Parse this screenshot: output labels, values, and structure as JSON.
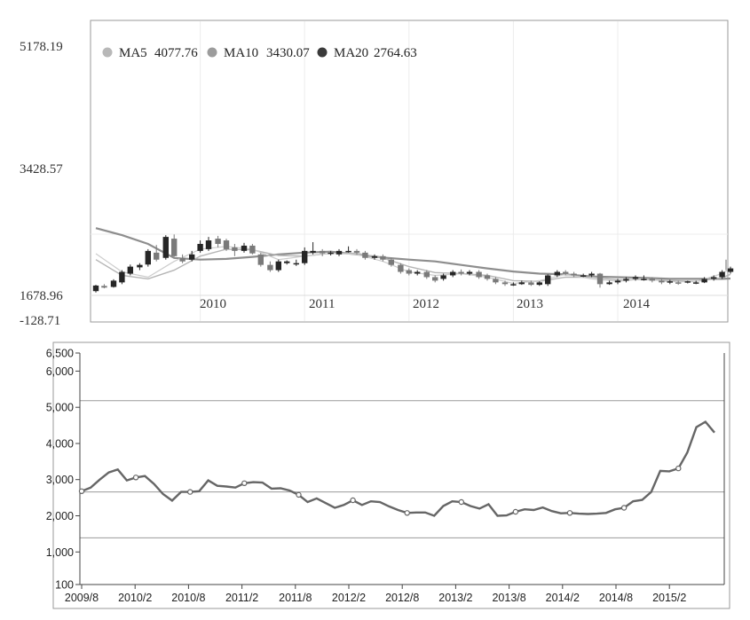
{
  "chart_data": [
    {
      "type": "candlestick",
      "title": "",
      "xlabel": "",
      "ylabel": "",
      "y_ticks": [
        "5178.19",
        "3428.57",
        "1678.96",
        "-128.71"
      ],
      "ylim": [
        1678.96,
        5178.19
      ],
      "x_ticks": [
        "2010",
        "2011",
        "2012",
        "2013",
        "2014"
      ],
      "legend_position": "top-left",
      "legend": [
        {
          "name": "MA5",
          "value": "4077.76",
          "color": "#b8b8b8"
        },
        {
          "name": "MA10",
          "value": "3430.07",
          "color": "#9c9c9c"
        },
        {
          "name": "MA20",
          "value": "2764.63",
          "color": "#3a3a3a"
        }
      ],
      "series_x_range": [
        2009.0,
        2014.95
      ],
      "candles": [
        [
          2009.0,
          1800,
          1960,
          1980,
          1760
        ],
        [
          2009.08,
          1950,
          1900,
          2000,
          1880
        ],
        [
          2009.17,
          1920,
          2100,
          2140,
          1900
        ],
        [
          2009.25,
          2050,
          2350,
          2400,
          2000
        ],
        [
          2009.33,
          2300,
          2500,
          2560,
          2250
        ],
        [
          2009.42,
          2480,
          2550,
          2600,
          2400
        ],
        [
          2009.5,
          2560,
          2950,
          3000,
          2500
        ],
        [
          2009.58,
          2900,
          2700,
          3120,
          2650
        ],
        [
          2009.67,
          2750,
          3350,
          3400,
          2700
        ],
        [
          2009.75,
          3300,
          2800,
          3420,
          2780
        ],
        [
          2009.83,
          2750,
          2650,
          2850,
          2600
        ],
        [
          2009.92,
          2700,
          2850,
          2950,
          2650
        ],
        [
          2010.0,
          2950,
          3150,
          3250,
          2900
        ],
        [
          2010.08,
          3000,
          3250,
          3350,
          2950
        ],
        [
          2010.17,
          3300,
          3150,
          3380,
          3050
        ],
        [
          2010.25,
          3250,
          3000,
          3300,
          2950
        ],
        [
          2010.33,
          3050,
          2950,
          3150,
          2800
        ],
        [
          2010.42,
          2950,
          3100,
          3180,
          2900
        ],
        [
          2010.5,
          3100,
          2880,
          3150,
          2850
        ],
        [
          2010.58,
          2850,
          2550,
          2900,
          2500
        ],
        [
          2010.67,
          2550,
          2400,
          2650,
          2350
        ],
        [
          2010.75,
          2400,
          2650,
          2700,
          2350
        ],
        [
          2010.83,
          2600,
          2650,
          2680,
          2560
        ],
        [
          2010.92,
          2600,
          2600,
          2700,
          2520
        ],
        [
          2011.0,
          2600,
          2950,
          3050,
          2550
        ],
        [
          2011.08,
          2900,
          2950,
          3200,
          2850
        ],
        [
          2011.17,
          2950,
          2880,
          3000,
          2800
        ],
        [
          2011.25,
          2880,
          2900,
          2950,
          2820
        ],
        [
          2011.33,
          2850,
          2950,
          3000,
          2800
        ],
        [
          2011.42,
          2950,
          2950,
          3080,
          2900
        ],
        [
          2011.5,
          2950,
          2900,
          3000,
          2850
        ],
        [
          2011.58,
          2900,
          2750,
          2950,
          2700
        ],
        [
          2011.67,
          2750,
          2800,
          2850,
          2700
        ],
        [
          2011.75,
          2800,
          2700,
          2850,
          2650
        ],
        [
          2011.83,
          2700,
          2550,
          2750,
          2500
        ],
        [
          2011.92,
          2550,
          2350,
          2600,
          2300
        ],
        [
          2012.0,
          2400,
          2300,
          2450,
          2250
        ],
        [
          2012.08,
          2300,
          2350,
          2400,
          2250
        ],
        [
          2012.17,
          2350,
          2200,
          2400,
          2150
        ],
        [
          2012.25,
          2200,
          2100,
          2250,
          2050
        ],
        [
          2012.33,
          2150,
          2250,
          2300,
          2100
        ],
        [
          2012.42,
          2250,
          2350,
          2400,
          2200
        ],
        [
          2012.5,
          2350,
          2300,
          2420,
          2250
        ],
        [
          2012.58,
          2300,
          2350,
          2400,
          2250
        ],
        [
          2012.67,
          2350,
          2200,
          2400,
          2150
        ],
        [
          2012.75,
          2250,
          2150,
          2300,
          2100
        ],
        [
          2012.83,
          2150,
          2050,
          2200,
          2000
        ],
        [
          2012.92,
          2050,
          2000,
          2100,
          1950
        ],
        [
          2013.0,
          2000,
          2000,
          2050,
          1950
        ],
        [
          2013.08,
          2000,
          2050,
          2100,
          1980
        ],
        [
          2013.17,
          2050,
          1980,
          2100,
          1950
        ],
        [
          2013.25,
          1980,
          2050,
          2080,
          1950
        ],
        [
          2013.33,
          2000,
          2250,
          2280,
          1950
        ],
        [
          2013.42,
          2250,
          2350,
          2400,
          2200
        ],
        [
          2013.5,
          2350,
          2300,
          2400,
          2250
        ],
        [
          2013.58,
          2300,
          2250,
          2350,
          2200
        ],
        [
          2013.67,
          2250,
          2250,
          2300,
          2200
        ],
        [
          2013.75,
          2250,
          2300,
          2350,
          2200
        ],
        [
          2013.83,
          2300,
          2000,
          2320,
          1900
        ],
        [
          2013.92,
          2000,
          2050,
          2100,
          1980
        ],
        [
          2014.0,
          2050,
          2100,
          2150,
          2000
        ],
        [
          2014.08,
          2100,
          2150,
          2200,
          2050
        ],
        [
          2014.17,
          2150,
          2200,
          2250,
          2100
        ],
        [
          2014.25,
          2150,
          2150,
          2250,
          2100
        ],
        [
          2014.33,
          2150,
          2100,
          2200,
          2050
        ],
        [
          2014.42,
          2100,
          2050,
          2150,
          2000
        ],
        [
          2014.5,
          2050,
          2080,
          2120,
          2000
        ],
        [
          2014.58,
          2050,
          2030,
          2100,
          1980
        ],
        [
          2014.67,
          2050,
          2080,
          2100,
          2020
        ],
        [
          2014.75,
          2050,
          2050,
          2100,
          2000
        ],
        [
          2014.83,
          2050,
          2150,
          2200,
          2030
        ],
        [
          2014.92,
          2150,
          2200,
          2250,
          2100
        ],
        [
          2015.0,
          2200,
          2350,
          2400,
          2150
        ],
        [
          2015.08,
          2350,
          2450,
          2500,
          2300
        ]
      ],
      "ma5": [
        [
          2009.0,
          2870
        ],
        [
          2009.25,
          2350
        ],
        [
          2009.5,
          2200
        ],
        [
          2009.75,
          2650
        ],
        [
          2010.0,
          3000
        ],
        [
          2010.25,
          3080
        ],
        [
          2010.5,
          3000
        ],
        [
          2010.75,
          2700
        ],
        [
          2011.0,
          2800
        ],
        [
          2011.25,
          2880
        ],
        [
          2011.5,
          2850
        ],
        [
          2011.75,
          2650
        ],
        [
          2012.0,
          2350
        ],
        [
          2012.25,
          2250
        ],
        [
          2012.5,
          2300
        ],
        [
          2012.75,
          2200
        ],
        [
          2013.0,
          2020
        ],
        [
          2013.25,
          2100
        ],
        [
          2013.5,
          2280
        ],
        [
          2013.75,
          2150
        ],
        [
          2014.0,
          2080
        ],
        [
          2014.25,
          2150
        ],
        [
          2014.5,
          2070
        ],
        [
          2014.75,
          2070
        ],
        [
          2015.0,
          2300
        ],
        [
          2015.08,
          2450
        ]
      ],
      "ma10": [
        [
          2009.0,
          2700
        ],
        [
          2009.25,
          2250
        ],
        [
          2009.5,
          2150
        ],
        [
          2009.75,
          2400
        ],
        [
          2010.0,
          2800
        ],
        [
          2010.25,
          3000
        ],
        [
          2010.5,
          2980
        ],
        [
          2010.75,
          2820
        ],
        [
          2011.0,
          2800
        ],
        [
          2011.25,
          2880
        ],
        [
          2011.5,
          2880
        ],
        [
          2011.75,
          2750
        ],
        [
          2012.0,
          2500
        ],
        [
          2012.25,
          2330
        ],
        [
          2012.5,
          2300
        ],
        [
          2012.75,
          2250
        ],
        [
          2013.0,
          2100
        ],
        [
          2013.25,
          2080
        ],
        [
          2013.5,
          2200
        ],
        [
          2013.75,
          2200
        ],
        [
          2014.0,
          2120
        ],
        [
          2014.25,
          2130
        ],
        [
          2014.5,
          2100
        ],
        [
          2014.75,
          2080
        ],
        [
          2015.0,
          2180
        ],
        [
          2015.08,
          2280
        ]
      ],
      "ma20": [
        [
          2009.0,
          3600
        ],
        [
          2009.25,
          3400
        ],
        [
          2009.5,
          3150
        ],
        [
          2009.75,
          2750
        ],
        [
          2010.0,
          2700
        ],
        [
          2010.25,
          2720
        ],
        [
          2010.5,
          2780
        ],
        [
          2010.75,
          2850
        ],
        [
          2011.0,
          2900
        ],
        [
          2011.25,
          2930
        ],
        [
          2011.5,
          2850
        ],
        [
          2011.75,
          2760
        ],
        [
          2012.0,
          2700
        ],
        [
          2012.25,
          2650
        ],
        [
          2012.5,
          2550
        ],
        [
          2012.75,
          2450
        ],
        [
          2013.0,
          2360
        ],
        [
          2013.25,
          2300
        ],
        [
          2013.5,
          2280
        ],
        [
          2013.75,
          2220
        ],
        [
          2014.0,
          2200
        ],
        [
          2014.25,
          2180
        ],
        [
          2014.5,
          2150
        ],
        [
          2014.75,
          2150
        ],
        [
          2015.0,
          2150
        ],
        [
          2015.08,
          2160
        ]
      ]
    },
    {
      "type": "line",
      "title": "",
      "xlabel": "",
      "ylabel": "",
      "y_ticks": [
        100,
        1000,
        2000,
        3000,
        4000,
        5000,
        6000,
        6500
      ],
      "y_tick_labels": [
        "100",
        "1,000",
        "2,000",
        "3,000",
        "4,000",
        "5,000",
        "6,000",
        "6,500"
      ],
      "ylim": [
        100,
        6500
      ],
      "x_labels": [
        "2009/8",
        "2010/2",
        "2010/8",
        "2011/2",
        "2011/8",
        "2012/2",
        "2012/8",
        "2013/2",
        "2013/8",
        "2014/2",
        "2014/8",
        "2015/2"
      ],
      "grid": "horizontal",
      "reference_lines": [
        5180,
        2660,
        1390
      ],
      "marker_indices": [
        0,
        6,
        12,
        18,
        24,
        30,
        36,
        42,
        48,
        54,
        60,
        66
      ],
      "series": [
        {
          "values": [
            2680,
            2780,
            3000,
            3200,
            3280,
            2980,
            3060,
            3100,
            2880,
            2600,
            2420,
            2660,
            2660,
            2680,
            2980,
            2830,
            2810,
            2780,
            2900,
            2930,
            2920,
            2750,
            2760,
            2700,
            2580,
            2380,
            2480,
            2350,
            2220,
            2300,
            2430,
            2300,
            2400,
            2380,
            2260,
            2160,
            2080,
            2090,
            2090,
            2000,
            2270,
            2400,
            2380,
            2270,
            2200,
            2320,
            2000,
            2010,
            2110,
            2180,
            2160,
            2230,
            2130,
            2070,
            2080,
            2060,
            2050,
            2060,
            2080,
            2180,
            2220,
            2400,
            2440,
            2660,
            3240,
            3230,
            3310,
            3750,
            4450,
            4600,
            4300
          ]
        }
      ]
    }
  ]
}
